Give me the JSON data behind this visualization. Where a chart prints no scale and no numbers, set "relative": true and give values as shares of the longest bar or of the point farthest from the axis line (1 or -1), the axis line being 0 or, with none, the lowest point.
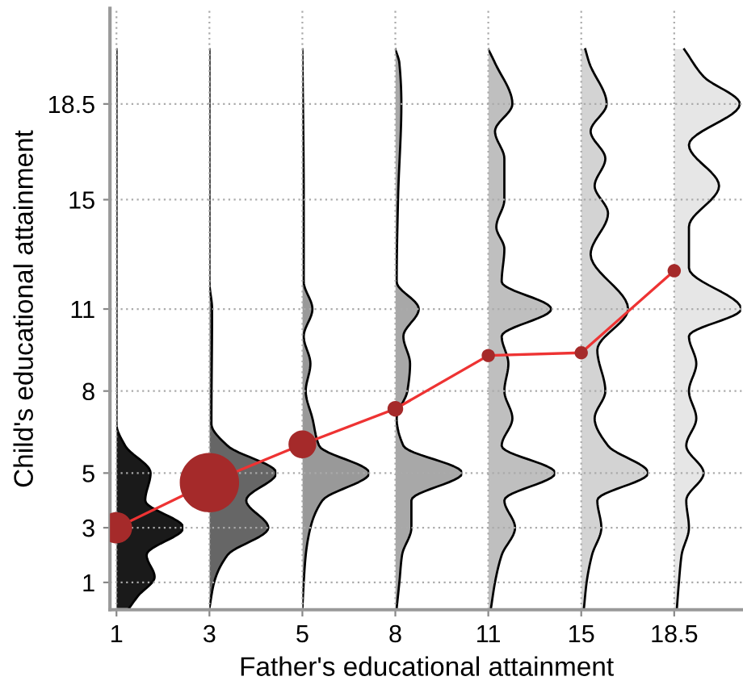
{
  "chart_data": [
    {
      "type": "line",
      "xlabel": "Father's educational attainment",
      "ylabel": "Child's educational attainment",
      "categories": [
        "1",
        "3",
        "5",
        "8",
        "11",
        "15",
        "18.5"
      ],
      "ylim": [
        0,
        22
      ],
      "yticks": [
        1,
        3,
        5,
        8,
        11,
        15,
        18.5
      ],
      "grid": true,
      "series": [
        {
          "type": "line",
          "color": "#ee3333",
          "marker": "none",
          "values": [
            3.0,
            4.65,
            6.05,
            7.35,
            9.3,
            9.4,
            12.4
          ]
        },
        {
          "type": "bubble",
          "color": "#a52a2a",
          "values": [
            3.0,
            4.65,
            6.05,
            7.35,
            9.3,
            9.4,
            12.4
          ],
          "sizes": [
            0.28,
            1,
            0.22,
            0.07,
            0.05,
            0.05,
            0.05
          ]
        }
      ]
    },
    {
      "type": "area",
      "orientation": "horizontal",
      "relative": true,
      "ylim": [
        0,
        22
      ],
      "series": [
        {
          "color": "#1a1a1a",
          "x": [
            0.06,
            0.5,
            1.2,
            2,
            3,
            4,
            5,
            6,
            6.8,
            20.5
          ],
          "values": [
            0.19,
            0.32,
            0.57,
            0.45,
            1,
            0.43,
            0.51,
            0.13,
            0,
            0
          ]
        }
      ]
    },
    {
      "type": "area",
      "orientation": "horizontal",
      "relative": true,
      "ylim": [
        0,
        22
      ],
      "series": [
        {
          "color": "#666666",
          "x": [
            0.06,
            1,
            2,
            3,
            4,
            5,
            6,
            6.8,
            11,
            12,
            20.5
          ],
          "values": [
            0,
            0.07,
            0.27,
            0.88,
            0.55,
            1,
            0.27,
            0.03,
            0.04,
            0,
            0
          ]
        }
      ]
    },
    {
      "type": "area",
      "orientation": "horizontal",
      "relative": true,
      "ylim": [
        0,
        22
      ],
      "series": [
        {
          "color": "#999999",
          "x": [
            0.06,
            1,
            2,
            3,
            4,
            5,
            6,
            7,
            8,
            9,
            10,
            11,
            12,
            15,
            20.5
          ],
          "values": [
            0,
            0.02,
            0.05,
            0.12,
            0.3,
            1.0,
            0.25,
            0.15,
            0.05,
            0.12,
            0.02,
            0.15,
            0.02,
            0.02,
            0
          ]
        }
      ]
    },
    {
      "type": "area",
      "orientation": "horizontal",
      "relative": true,
      "ylim": [
        0,
        22
      ],
      "series": [
        {
          "color": "#a8a8a8",
          "x": [
            0.06,
            1,
            2,
            3,
            4,
            5,
            6,
            7,
            8,
            9,
            10,
            11,
            12,
            15,
            18.5,
            20,
            20.5
          ],
          "values": [
            0.02,
            0.06,
            0.1,
            0.24,
            0.24,
            1,
            0.12,
            0.02,
            0.18,
            0.22,
            0.12,
            0.35,
            0.02,
            0.04,
            0.09,
            0.06,
            0
          ]
        }
      ]
    },
    {
      "type": "area",
      "orientation": "horizontal",
      "relative": true,
      "ylim": [
        0,
        22
      ],
      "series": [
        {
          "color": "#bfbfbf",
          "x": [
            0.06,
            1,
            2,
            3,
            4,
            5,
            6,
            7,
            8,
            9,
            10,
            11,
            12,
            13.2,
            14,
            15,
            16.5,
            17.5,
            18.5,
            20,
            20.5
          ],
          "values": [
            0.04,
            0.1,
            0.2,
            0.4,
            0.24,
            1,
            0.2,
            0.36,
            0.24,
            0.3,
            0.2,
            0.94,
            0.2,
            0.24,
            0.12,
            0.24,
            0.24,
            0.1,
            0.36,
            0.1,
            0
          ]
        }
      ]
    },
    {
      "type": "area",
      "orientation": "horizontal",
      "relative": true,
      "ylim": [
        0,
        22
      ],
      "series": [
        {
          "color": "#d3d3d3",
          "x": [
            0.06,
            1,
            2,
            3,
            4,
            5,
            6,
            7,
            8,
            9.5,
            11,
            13,
            14.5,
            15.5,
            16.5,
            17.5,
            18.5,
            20,
            20.5
          ],
          "values": [
            0.04,
            0.08,
            0.16,
            0.3,
            0.24,
            1,
            0.4,
            0.2,
            0.36,
            0.24,
            0.7,
            0.14,
            0.4,
            0.2,
            0.36,
            0.14,
            0.38,
            0.12,
            0.06
          ]
        }
      ]
    },
    {
      "type": "area",
      "orientation": "horizontal",
      "relative": true,
      "ylim": [
        0,
        22
      ],
      "series": [
        {
          "color": "#e6e6e6",
          "x": [
            0.06,
            1,
            2,
            3,
            4,
            5,
            6,
            7,
            8,
            9,
            10,
            11,
            12.5,
            14,
            15.5,
            17,
            18.5,
            19.5,
            20.5
          ],
          "values": [
            0.04,
            0.07,
            0.11,
            0.22,
            0.18,
            0.44,
            0.18,
            0.33,
            0.22,
            0.33,
            0.22,
            1,
            0.22,
            0.22,
            0.67,
            0.22,
            0.98,
            0.44,
            0.15
          ]
        }
      ]
    }
  ]
}
